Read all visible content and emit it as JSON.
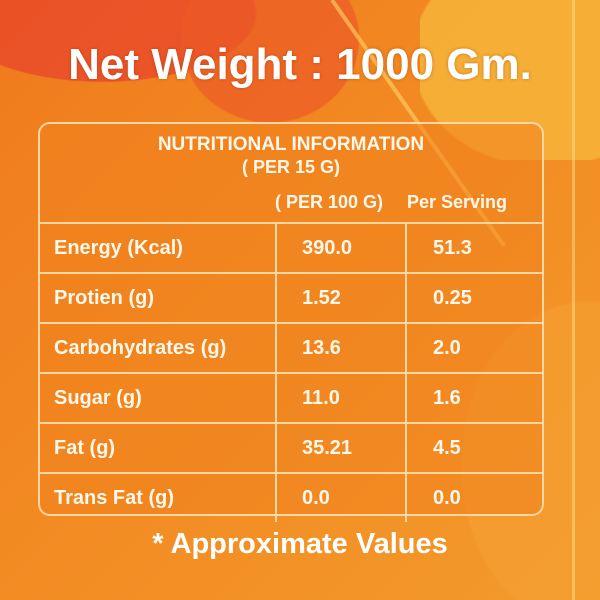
{
  "net_weight": "Net Weight : 1000 Gm.",
  "table": {
    "title": "NUTRITIONAL INFORMATION",
    "subtitle": "( PER 15 G)",
    "columns": [
      "( PER 100 G)",
      "Per Serving"
    ],
    "rows": [
      {
        "label": "Energy (Kcal)",
        "per100": "390.0",
        "serving": "51.3"
      },
      {
        "label": "Protien (g)",
        "per100": "1.52",
        "serving": "0.25"
      },
      {
        "label": "Carbohydrates (g)",
        "per100": "13.6",
        "serving": "2.0"
      },
      {
        "label": "Sugar (g)",
        "per100": "11.0",
        "serving": "1.6"
      },
      {
        "label": "Fat (g)",
        "per100": "35.21",
        "serving": "4.5"
      },
      {
        "label": "Trans Fat (g)",
        "per100": "0.0",
        "serving": "0.0"
      }
    ]
  },
  "footnote": "* Approximate Values",
  "colors": {
    "background": "#f28a22",
    "text": "#fff8ea",
    "border": "#fbd7a4"
  }
}
